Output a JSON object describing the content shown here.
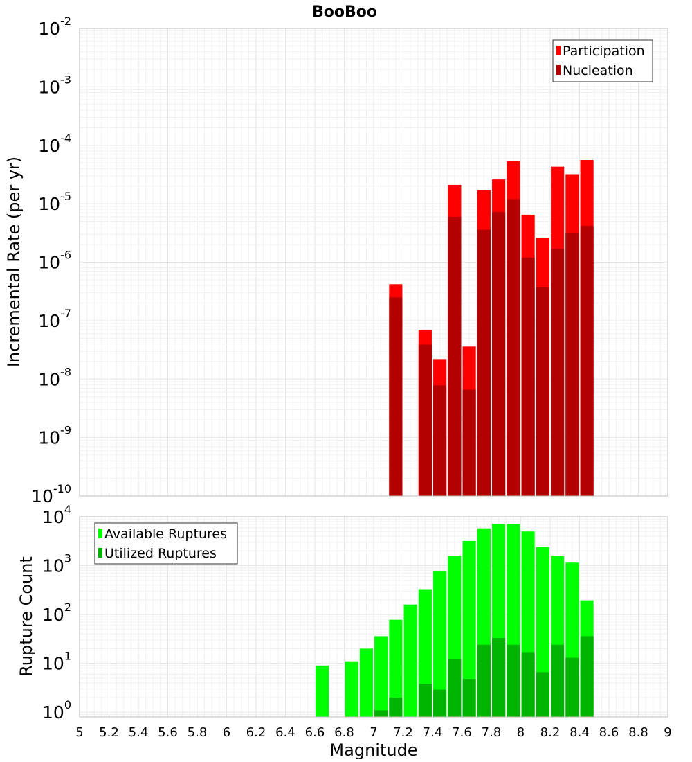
{
  "chart_data": [
    {
      "type": "bar",
      "title": "BooBoo",
      "ylabel": "Incremental Rate (per yr)",
      "xlabel": "",
      "y_scale": "log",
      "xlim": [
        5,
        9
      ],
      "ylim": [
        1e-10,
        0.01
      ],
      "bar_width": 0.09,
      "grid": true,
      "legend_position": "top-right",
      "x_ticks": [
        "5",
        "5.2",
        "5.4",
        "5.6",
        "5.8",
        "6",
        "6.2",
        "6.4",
        "6.6",
        "6.8",
        "7",
        "7.2",
        "7.4",
        "7.6",
        "7.8",
        "8",
        "8.2",
        "8.4",
        "8.6",
        "8.8",
        "9"
      ],
      "y_ticks": [
        {
          "base": "10",
          "exp": "-10",
          "value": 1e-10
        },
        {
          "base": "10",
          "exp": "-9",
          "value": 1e-09
        },
        {
          "base": "10",
          "exp": "-8",
          "value": 1e-08
        },
        {
          "base": "10",
          "exp": "-7",
          "value": 1e-07
        },
        {
          "base": "10",
          "exp": "-6",
          "value": 1e-06
        },
        {
          "base": "10",
          "exp": "-5",
          "value": 1e-05
        },
        {
          "base": "10",
          "exp": "-4",
          "value": 0.0001
        },
        {
          "base": "10",
          "exp": "-3",
          "value": 0.001
        },
        {
          "base": "10",
          "exp": "-2",
          "value": 0.01
        }
      ],
      "x": [
        7.15,
        7.35,
        7.45,
        7.55,
        7.65,
        7.75,
        7.85,
        7.95,
        8.05,
        8.15,
        8.25,
        8.35,
        8.45
      ],
      "series": [
        {
          "name": "Participation",
          "color": "#ff0000",
          "values": [
            4.2e-07,
            7e-08,
            2.2e-08,
            2.1e-05,
            3.6e-08,
            1.7e-05,
            2.6e-05,
            5.3e-05,
            6.5e-06,
            2.6e-06,
            4.3e-05,
            3.2e-05,
            5.6e-05
          ]
        },
        {
          "name": "Nucleation",
          "color": "#b30000",
          "values": [
            2.5e-07,
            3.9e-08,
            7.8e-09,
            6e-06,
            6.6e-09,
            3.6e-06,
            7.2e-06,
            1.2e-05,
            1.2e-06,
            3.7e-07,
            1.7e-06,
            3.2e-06,
            4.2e-06
          ]
        }
      ]
    },
    {
      "type": "bar",
      "title": "",
      "ylabel": "Rupture Count",
      "xlabel": "Magnitude",
      "y_scale": "log",
      "xlim": [
        5,
        9
      ],
      "ylim": [
        0.8,
        10000
      ],
      "bar_width": 0.09,
      "grid": true,
      "legend_position": "top-left",
      "x_ticks": [
        "5",
        "5.2",
        "5.4",
        "5.6",
        "5.8",
        "6",
        "6.2",
        "6.4",
        "6.6",
        "6.8",
        "7",
        "7.2",
        "7.4",
        "7.6",
        "7.8",
        "8",
        "8.2",
        "8.4",
        "8.6",
        "8.8",
        "9"
      ],
      "y_ticks": [
        {
          "base": "10",
          "exp": "0",
          "value": 1
        },
        {
          "base": "10",
          "exp": "1",
          "value": 10
        },
        {
          "base": "10",
          "exp": "2",
          "value": 100
        },
        {
          "base": "10",
          "exp": "3",
          "value": 1000
        },
        {
          "base": "10",
          "exp": "4",
          "value": 10000
        }
      ],
      "x": [
        6.65,
        6.85,
        6.95,
        7.05,
        7.15,
        7.25,
        7.35,
        7.45,
        7.55,
        7.65,
        7.75,
        7.85,
        7.95,
        8.05,
        8.15,
        8.25,
        8.35,
        8.45
      ],
      "series": [
        {
          "name": "Available Ruptures",
          "color": "#00ff00",
          "values": [
            9,
            11,
            20,
            36,
            78,
            160,
            330,
            780,
            1600,
            3200,
            5800,
            7200,
            7000,
            5000,
            2400,
            1600,
            1150,
            195
          ]
        },
        {
          "name": "Utilized Ruptures",
          "color": "#00b300",
          "values": [
            0,
            0,
            0,
            1.1,
            2,
            0,
            3.8,
            2.9,
            12,
            4.8,
            24,
            33,
            24,
            17,
            6.6,
            24,
            13,
            36
          ]
        }
      ]
    }
  ]
}
